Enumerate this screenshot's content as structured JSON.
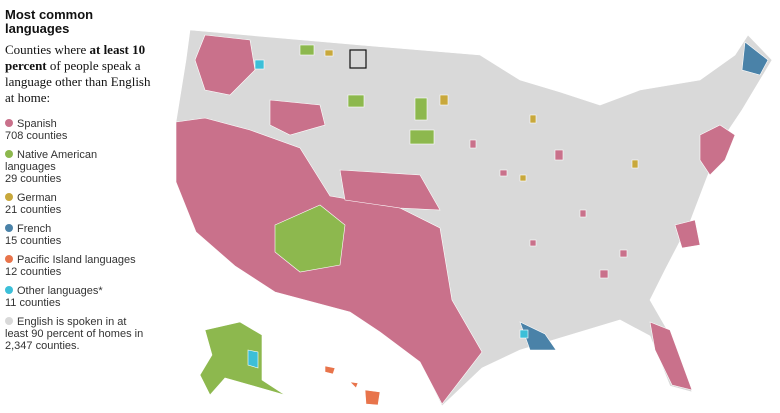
{
  "title": "Most common languages",
  "subtitle": {
    "before": "Counties where ",
    "bold": "at least 10 percent",
    "after": " of people speak a language other than English at home:"
  },
  "legend": [
    {
      "label": "Spanish",
      "count": "708 counties",
      "color": "#c9718b"
    },
    {
      "label": "Native American languages",
      "count": "29 counties",
      "color": "#8db84e"
    },
    {
      "label": "German",
      "count": "21 counties",
      "color": "#c8a83c"
    },
    {
      "label": "French",
      "count": "15 counties",
      "color": "#4a82a8"
    },
    {
      "label": "Pacific Island languages",
      "count": "12 counties",
      "color": "#e8744b"
    },
    {
      "label": "Other languages*",
      "count": "11 counties",
      "color": "#3cbfd8"
    },
    {
      "label": "English is spoken in at least 90 percent of homes in 2,347 counties.",
      "color": "#d9d9d9"
    }
  ]
}
